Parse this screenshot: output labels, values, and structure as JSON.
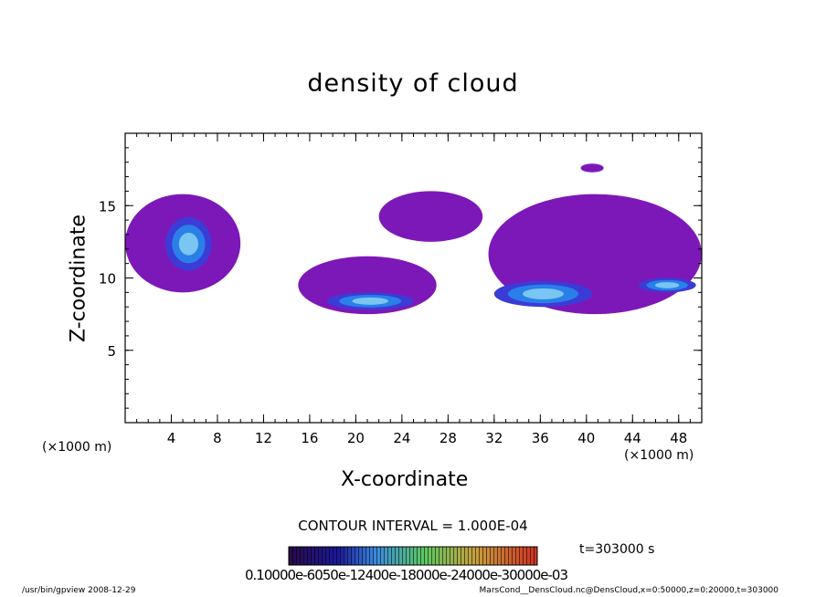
{
  "title": "density of cloud",
  "colors": {
    "outer": "#7d18b8",
    "mid": "#3b3bd6",
    "inner": "#2a7fe8",
    "core": "#79c6f2"
  },
  "chart_data": {
    "type": "heatmap",
    "title": "density of cloud",
    "xlabel": "X-coordinate",
    "ylabel": "Z-coordinate",
    "x_unit": "(×1000 m)",
    "xlim": [
      0,
      50
    ],
    "ylim": [
      0,
      20
    ],
    "x_ticks": [
      "4",
      "8",
      "12",
      "16",
      "20",
      "24",
      "28",
      "32",
      "36",
      "40",
      "44",
      "48"
    ],
    "y_ticks": [
      "5",
      "10",
      "15"
    ],
    "contour_interval": "CONTOUR INTERVAL = 1.000E-04",
    "colorbar_labels": "0.10000e-6050e-12400e-18000e-24000e-30000e-03",
    "time_label": "t=303000 s",
    "cloud_regions": [
      {
        "level": "outer",
        "x": [
          0.0,
          10.0
        ],
        "z": [
          9.0,
          15.8
        ]
      },
      {
        "level": "core",
        "x": [
          3.5,
          7.5
        ],
        "z": [
          10.5,
          14.2
        ]
      },
      {
        "level": "outer",
        "x": [
          15.0,
          27.0
        ],
        "z": [
          7.5,
          11.5
        ]
      },
      {
        "level": "core",
        "x": [
          17.5,
          25.0
        ],
        "z": [
          7.8,
          9.0
        ]
      },
      {
        "level": "outer",
        "x": [
          22.0,
          31.0
        ],
        "z": [
          12.5,
          16.0
        ]
      },
      {
        "level": "outer",
        "x": [
          31.5,
          50.0
        ],
        "z": [
          7.5,
          15.8
        ]
      },
      {
        "level": "core",
        "x": [
          32.0,
          40.5
        ],
        "z": [
          8.0,
          9.8
        ]
      },
      {
        "level": "core",
        "x": [
          44.5,
          49.5
        ],
        "z": [
          9.0,
          10.0
        ]
      },
      {
        "level": "outer",
        "x": [
          39.5,
          41.5
        ],
        "z": [
          17.3,
          17.9
        ]
      }
    ]
  },
  "footer": {
    "left": "/usr/bin/gpview   2008-12-29",
    "right": "MarsCond__DensCloud.nc@DensCloud,x=0:50000,z=0:20000,t=303000"
  }
}
